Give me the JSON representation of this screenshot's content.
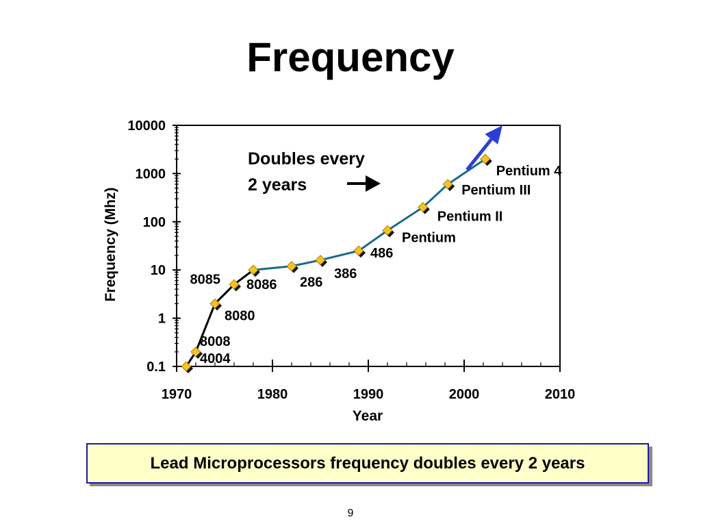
{
  "slide": {
    "title": "Frequency",
    "caption": "Lead Microprocessors frequency doubles every 2 years",
    "page_number": "9"
  },
  "chart_data": {
    "type": "line",
    "title": "",
    "xlabel": "Year",
    "ylabel": "Frequency (Mhz)",
    "xlim": [
      1970,
      2010
    ],
    "ylim": [
      0.1,
      10000
    ],
    "yscale": "log",
    "x_ticks": [
      "1970",
      "1980",
      "1990",
      "2000",
      "2010"
    ],
    "y_ticks": [
      "0.1",
      "1",
      "10",
      "100",
      "1000",
      "10000"
    ],
    "grid": false,
    "legend": "none",
    "series": [
      {
        "name": "",
        "color": "#000000",
        "points": [
          {
            "x": 1971,
            "y": 0.1,
            "label": "4004"
          },
          {
            "x": 1972,
            "y": 0.2,
            "label": "8008"
          },
          {
            "x": 1974,
            "y": 2,
            "label": "8080"
          },
          {
            "x": 1976,
            "y": 5,
            "label": "8085"
          },
          {
            "x": 1978,
            "y": 10,
            "label": "8086"
          }
        ]
      },
      {
        "name": "",
        "color": "#1a6a8a",
        "points": [
          {
            "x": 1978,
            "y": 10,
            "label": ""
          },
          {
            "x": 1982,
            "y": 12,
            "label": "286"
          },
          {
            "x": 1985,
            "y": 16,
            "label": "386"
          },
          {
            "x": 1989,
            "y": 25,
            "label": "486"
          },
          {
            "x": 1992,
            "y": 66,
            "label": "Pentium"
          },
          {
            "x": 1995.7,
            "y": 200,
            "label": "Pentium II"
          },
          {
            "x": 1998.3,
            "y": 600,
            "label": "Pentium III"
          },
          {
            "x": 2002.2,
            "y": 2000,
            "label": "Pentium 4"
          }
        ]
      }
    ],
    "trend_arrow": {
      "from": {
        "x": 2000.3,
        "y": 1200
      },
      "to": {
        "x": 2004,
        "y": 10000
      },
      "color": "#2b3fd6"
    },
    "annotation": {
      "line1": "Doubles every",
      "line2": "2  years"
    },
    "marker_color": "#f7c21a"
  }
}
